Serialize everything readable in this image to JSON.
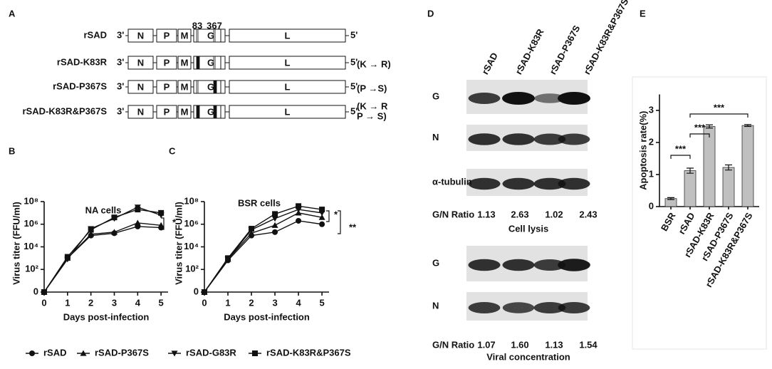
{
  "diagram_a": {
    "panel": "A",
    "site_labels": [
      "83",
      "367"
    ],
    "end3": "3'",
    "end5": "5'",
    "genes": [
      "N",
      "P",
      "M",
      "G",
      "L"
    ],
    "constructs": [
      {
        "name": "rSAD"
      },
      {
        "name": "rSAD-K83R",
        "mutation": [
          "(K → R)"
        ]
      },
      {
        "name": "rSAD-P367S",
        "mutation": [
          "(P →S)"
        ]
      },
      {
        "name": "rSAD-K83R&P367S",
        "mutation": [
          "(K → R",
          "P → S)"
        ]
      }
    ]
  },
  "blot_d": {
    "panel": "D",
    "lanes": [
      "rSAD",
      "rSAD-K83R",
      "rSAD-P367S",
      "rSAD-K83R&P367S"
    ],
    "lysis": {
      "rows": [
        "G",
        "N",
        "α-tubulin"
      ],
      "ratio_label": "G/N Ratio",
      "ratios": [
        "1.13",
        "2.63",
        "1.02",
        "2.43"
      ],
      "caption": "Cell lysis"
    },
    "viral": {
      "rows": [
        "G",
        "N"
      ],
      "ratio_label": "G/N Ratio",
      "ratios": [
        "1.07",
        "1.60",
        "1.13",
        "1.54"
      ],
      "caption": "Viral concentration"
    }
  },
  "chart_data": [
    {
      "type": "line",
      "panel": "B",
      "title": "NA cells",
      "xlabel": "Days post-infection",
      "ylabel": "Virus titer (FFU/ml)",
      "x": [
        0,
        1,
        2,
        3,
        4,
        5
      ],
      "xlim": [
        0,
        5.3
      ],
      "xticks": [
        0,
        1,
        2,
        3,
        4,
        5
      ],
      "yscale": "log",
      "ylim": [
        1,
        100000000
      ],
      "yticks": [
        {
          "value": 1,
          "label": "0"
        },
        {
          "value": 100,
          "label": "10²"
        },
        {
          "value": 10000,
          "label": "10⁴"
        },
        {
          "value": 1000000,
          "label": "10⁶"
        },
        {
          "value": 100000000,
          "label": "10⁸"
        }
      ],
      "annotations": [
        "*"
      ],
      "series": [
        {
          "name": "rSAD",
          "color": "#111111",
          "marker": "circle",
          "values": [
            1,
            1000,
            100000,
            160000,
            630000,
            500000
          ]
        },
        {
          "name": "rSAD-P367S",
          "color": "#111111",
          "marker": "triangle",
          "values": [
            1,
            1000,
            130000,
            200000,
            1300000,
            800000
          ]
        },
        {
          "name": "rSAD-G83R",
          "color": "#111111",
          "marker": "triangle-down",
          "values": [
            1,
            800,
            400000,
            3200000,
            32000000,
            6300000
          ]
        },
        {
          "name": "rSAD-K83R&P367S",
          "color": "#111111",
          "marker": "square",
          "values": [
            1,
            1300,
            320000,
            4000000,
            20000000,
            10000000
          ]
        }
      ]
    },
    {
      "type": "line",
      "panel": "C",
      "title": "BSR cells",
      "xlabel": "Days post-infection",
      "ylabel": "Virus titer (FFU/ml)",
      "x": [
        0,
        1,
        2,
        3,
        4,
        5
      ],
      "xlim": [
        0,
        5.3
      ],
      "xticks": [
        0,
        1,
        2,
        3,
        4,
        5
      ],
      "yscale": "log",
      "ylim": [
        1,
        100000000
      ],
      "yticks": [
        {
          "value": 1,
          "label": "0"
        },
        {
          "value": 100,
          "label": "10²"
        },
        {
          "value": 10000,
          "label": "10⁴"
        },
        {
          "value": 1000000,
          "label": "10⁶"
        },
        {
          "value": 100000000,
          "label": "10⁸"
        }
      ],
      "annotations": [
        "*",
        "**"
      ],
      "series": [
        {
          "name": "rSAD",
          "color": "#111111",
          "marker": "circle",
          "values": [
            1,
            630,
            100000,
            200000,
            2000000,
            1000000
          ]
        },
        {
          "name": "rSAD-P367S",
          "color": "#111111",
          "marker": "triangle",
          "values": [
            1,
            800,
            160000,
            800000,
            10000000,
            4000000
          ]
        },
        {
          "name": "rSAD-G83R",
          "color": "#111111",
          "marker": "triangle-down",
          "values": [
            1,
            800,
            320000,
            3200000,
            20000000,
            10000000
          ]
        },
        {
          "name": "rSAD-K83R&P367S",
          "color": "#111111",
          "marker": "square",
          "values": [
            1,
            1000,
            400000,
            8000000,
            40000000,
            20000000
          ]
        }
      ]
    },
    {
      "type": "bar",
      "panel": "E",
      "ylabel": "Apoptosis rate(%)",
      "categories": [
        "BSR",
        "rSAD",
        "rSAD-K83R",
        "rSAD-P367S",
        "rSAD-K83R&P367S"
      ],
      "values": [
        0.25,
        1.12,
        2.5,
        1.22,
        2.53
      ],
      "errors": [
        0.03,
        0.08,
        0.05,
        0.08,
        0.03
      ],
      "color": "#c0c0c0",
      "ylim": [
        0,
        3.5
      ],
      "yticks": [
        0,
        1,
        2,
        3
      ],
      "annotations": [
        "***",
        "***",
        "***"
      ]
    }
  ]
}
